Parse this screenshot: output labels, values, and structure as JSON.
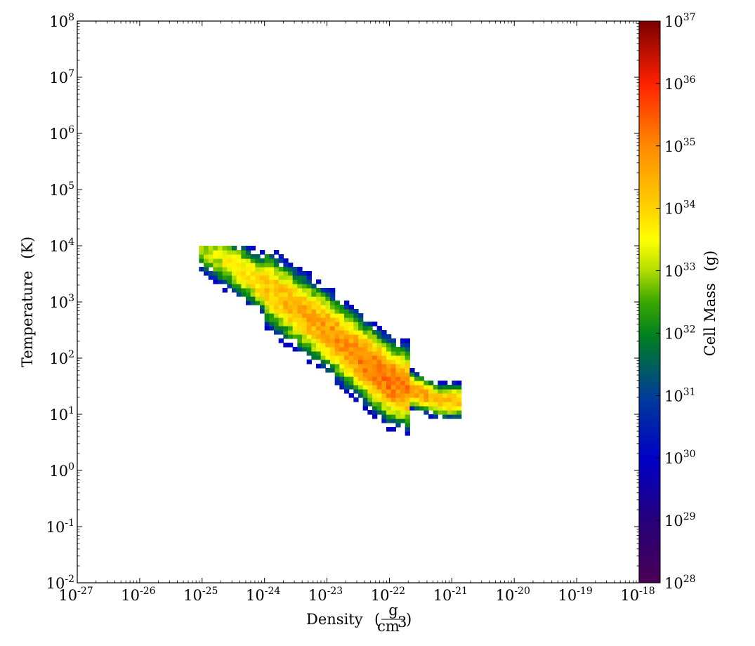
{
  "chart_data": {
    "type": "heatmap",
    "title": "",
    "xlabel": "Density",
    "xlabel_unit": {
      "numerator": "g",
      "denominator": "cm",
      "denominator_power": "3"
    },
    "ylabel": "Temperature",
    "ylabel_unit": "(K)",
    "x_scale": "log",
    "y_scale": "log",
    "x_tick_base": "10",
    "y_tick_base": "10",
    "x_exponents": [
      "-27",
      "-26",
      "-25",
      "-24",
      "-23",
      "-22",
      "-21",
      "-20",
      "-19",
      "-18"
    ],
    "y_exponents": [
      "-2",
      "-1",
      "0",
      "1",
      "2",
      "3",
      "4",
      "5",
      "6",
      "7",
      "8"
    ],
    "xlim_log10": [
      -27,
      -18
    ],
    "ylim_log10": [
      -2,
      8
    ],
    "colorbar": {
      "label": "Cell Mass",
      "unit": "(g)",
      "scale": "log",
      "range_log10": [
        28,
        37
      ],
      "tick_base": "10",
      "tick_exponents": [
        "28",
        "29",
        "30",
        "31",
        "32",
        "33",
        "34",
        "35",
        "36",
        "37"
      ],
      "colormap": "rainbow"
    },
    "distribution": {
      "description_points": [
        {
          "log10_density": -25.0,
          "log10_temperature": 4.0,
          "log10_mass": 33.4
        },
        {
          "log10_density": -24.0,
          "log10_temperature": 3.3,
          "log10_mass": 34.6
        },
        {
          "log10_density": -23.0,
          "log10_temperature": 2.5,
          "log10_mass": 35.2
        },
        {
          "log10_density": -22.0,
          "log10_temperature": 1.6,
          "log10_mass": 35.8
        },
        {
          "log10_density": -21.2,
          "log10_temperature": 1.25,
          "log10_mass": 34.8
        }
      ],
      "density_range_log10": [
        -25.05,
        -20.85
      ],
      "temperature_range_log10": [
        0.55,
        4.0
      ]
    }
  }
}
